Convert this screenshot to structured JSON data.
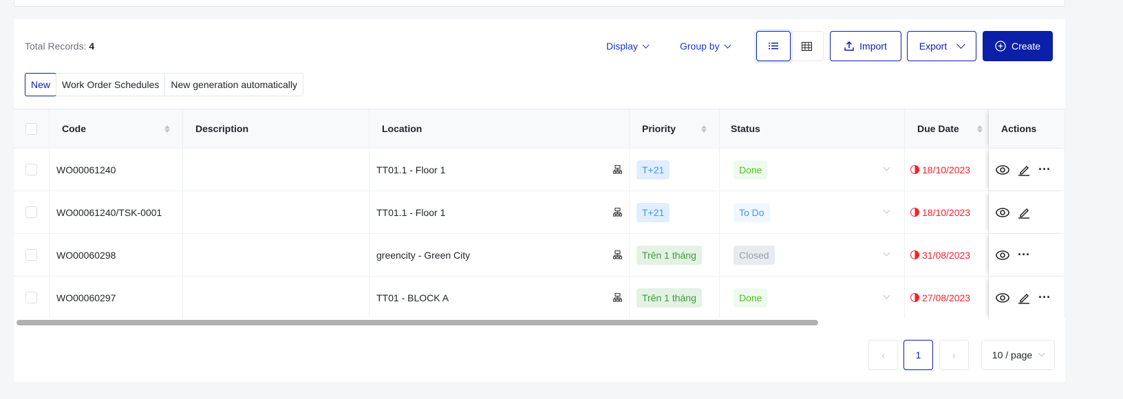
{
  "toolbar": {
    "total_label": "Total Records:",
    "total_value": "4",
    "display": "Display",
    "group_by": "Group by",
    "import": "Import",
    "export": "Export",
    "create": "Create",
    "active_view": "list"
  },
  "tabs": [
    "New",
    "Work Order Schedules",
    "New generation automatically"
  ],
  "columns": [
    "Code",
    "Description",
    "Location",
    "Priority",
    "Status",
    "Due Date",
    "Actions"
  ],
  "rows": [
    {
      "code": "WO00061240",
      "description": "",
      "location": "TT01.1 - Floor 1",
      "priority": "T+21",
      "priority_type": "blue",
      "status": "Done",
      "due": "18/10/2023",
      "actions": [
        "view",
        "edit",
        "more"
      ]
    },
    {
      "code": "WO00061240/TSK-0001",
      "description": "",
      "location": "TT01.1 - Floor 1",
      "priority": "T+21",
      "priority_type": "blue",
      "status": "To Do",
      "due": "18/10/2023",
      "actions": [
        "view",
        "edit"
      ]
    },
    {
      "code": "WO00060298",
      "description": "",
      "location": "greencity - Green City",
      "priority": "Trên 1 tháng",
      "priority_type": "green",
      "status": "Closed",
      "due": "31/08/2023",
      "actions": [
        "view",
        "more"
      ]
    },
    {
      "code": "WO00060297",
      "description": "",
      "location": "TT01 - BLOCK A",
      "priority": "Trên 1 tháng",
      "priority_type": "green",
      "status": "Done",
      "due": "27/08/2023",
      "actions": [
        "view",
        "edit",
        "more"
      ]
    }
  ],
  "pagination": {
    "current": "1",
    "page_size": "10 / page"
  },
  "colors": {
    "accent": "#0b1fa8",
    "danger": "#f5222d"
  }
}
